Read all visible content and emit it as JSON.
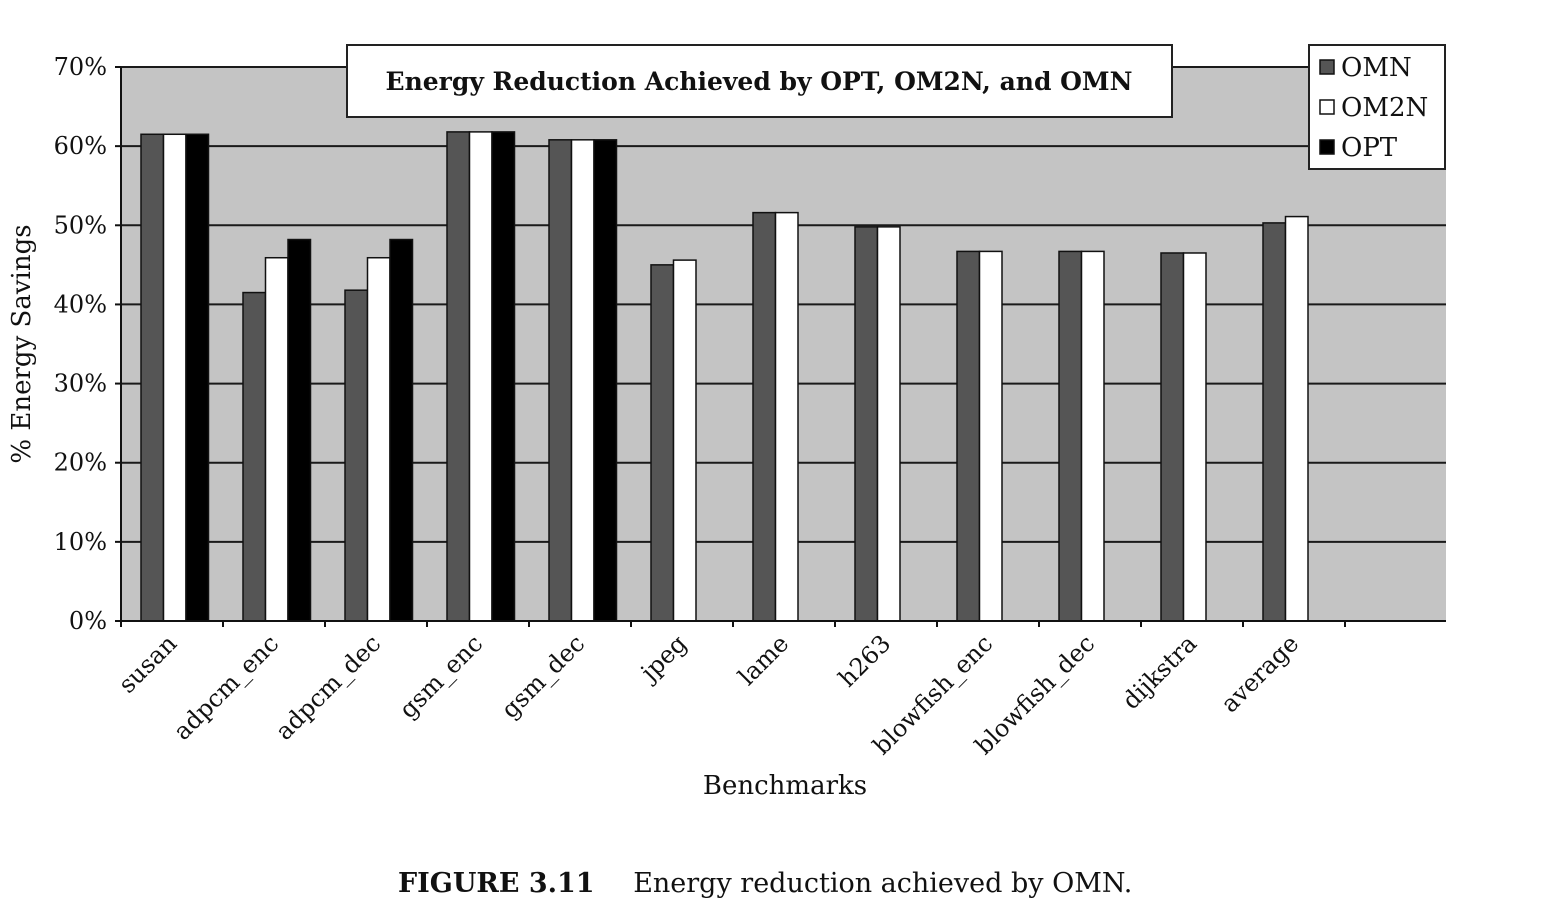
{
  "chart_data": {
    "type": "bar",
    "title": "Energy Reduction Achieved by OPT, OM2N, and OMN",
    "xlabel": "Benchmarks",
    "ylabel": "% Energy Savings",
    "ylim": [
      0,
      70
    ],
    "yticks": [
      "0%",
      "10%",
      "20%",
      "30%",
      "40%",
      "50%",
      "60%",
      "70%"
    ],
    "grid": true,
    "legend_position": "top-right",
    "categories": [
      "susan",
      "adpcm_enc",
      "adpcm_dec",
      "gsm_enc",
      "gsm_dec",
      "jpeg",
      "lame",
      "h263",
      "blowfish_enc",
      "blowfish_dec",
      "dijkstra",
      "average"
    ],
    "series": [
      {
        "name": "OMN",
        "color": "#555555",
        "values": [
          61.5,
          41.5,
          41.8,
          61.8,
          60.8,
          45.0,
          51.6,
          49.8,
          46.7,
          46.7,
          46.5,
          50.3
        ]
      },
      {
        "name": "OM2N",
        "color": "#ffffff",
        "values": [
          61.5,
          45.9,
          45.9,
          61.8,
          60.8,
          45.6,
          51.6,
          49.8,
          46.7,
          46.7,
          46.5,
          51.1
        ]
      },
      {
        "name": "OPT",
        "color": "#000000",
        "values": [
          61.5,
          48.2,
          48.2,
          61.8,
          60.8,
          null,
          null,
          null,
          null,
          null,
          null,
          null
        ]
      }
    ],
    "plot_background": "#c4c4c4"
  },
  "caption": {
    "number": "FIGURE 3.11",
    "text": "Energy reduction achieved by OMN."
  }
}
